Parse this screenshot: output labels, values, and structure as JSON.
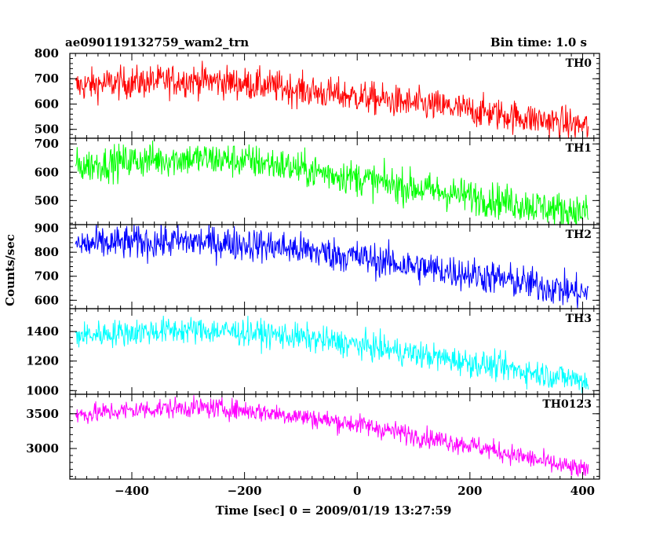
{
  "header": {
    "title": "ae090119132759_wam2_trn",
    "bin_time": "Bin time: 1.0 s"
  },
  "chart_data": {
    "type": "line",
    "xlabel": "Time [sec] 0 = 2009/01/19 13:27:59",
    "ylabel": "Counts/sec",
    "xlim": [
      -510,
      430
    ],
    "xticks": [
      -400,
      -200,
      0,
      200,
      400
    ],
    "grid": false,
    "panels": [
      {
        "name": "TH0",
        "color": "#ff0000",
        "ylim": [
          465,
          800
        ],
        "yticks": [
          500,
          600,
          700,
          800
        ],
        "x": [
          -500,
          -450,
          -400,
          -350,
          -300,
          -250,
          -200,
          -150,
          -100,
          -50,
          0,
          50,
          100,
          150,
          200,
          250,
          300,
          350,
          400,
          410
        ],
        "values": [
          670,
          680,
          685,
          690,
          695,
          690,
          680,
          670,
          655,
          640,
          630,
          615,
          600,
          590,
          575,
          560,
          545,
          530,
          515,
          510
        ]
      },
      {
        "name": "TH1",
        "color": "#00ff00",
        "ylim": [
          415,
          720
        ],
        "yticks": [
          500,
          600,
          700
        ],
        "x": [
          -500,
          -450,
          -400,
          -350,
          -300,
          -250,
          -200,
          -150,
          -100,
          -50,
          0,
          50,
          100,
          150,
          200,
          250,
          300,
          350,
          400,
          410
        ],
        "values": [
          620,
          630,
          640,
          645,
          648,
          645,
          640,
          630,
          610,
          595,
          580,
          560,
          545,
          530,
          515,
          500,
          485,
          470,
          460,
          458
        ]
      },
      {
        "name": "TH2",
        "color": "#0000ff",
        "ylim": [
          565,
          915
        ],
        "yticks": [
          600,
          700,
          800,
          900
        ],
        "x": [
          -500,
          -450,
          -400,
          -350,
          -300,
          -250,
          -200,
          -150,
          -100,
          -50,
          0,
          50,
          100,
          150,
          200,
          250,
          300,
          350,
          400,
          410
        ],
        "values": [
          830,
          835,
          840,
          842,
          845,
          840,
          835,
          825,
          810,
          795,
          780,
          760,
          740,
          725,
          710,
          690,
          670,
          650,
          630,
          625
        ]
      },
      {
        "name": "TH3",
        "color": "#00ffff",
        "ylim": [
          975,
          1555
        ],
        "yticks": [
          1000,
          1200,
          1400
        ],
        "x": [
          -500,
          -450,
          -400,
          -350,
          -300,
          -250,
          -200,
          -150,
          -100,
          -50,
          0,
          50,
          100,
          150,
          200,
          250,
          300,
          350,
          400,
          410
        ],
        "values": [
          1370,
          1385,
          1395,
          1405,
          1410,
          1405,
          1395,
          1380,
          1360,
          1335,
          1310,
          1280,
          1250,
          1220,
          1190,
          1160,
          1130,
          1100,
          1070,
          1060
        ]
      },
      {
        "name": "TH0123",
        "color": "#ff00ff",
        "ylim": [
          2560,
          3780
        ],
        "yticks": [
          3000,
          3500
        ],
        "x": [
          -500,
          -450,
          -400,
          -350,
          -300,
          -250,
          -200,
          -150,
          -100,
          -50,
          0,
          50,
          100,
          150,
          200,
          250,
          300,
          350,
          400,
          410
        ],
        "values": [
          3480,
          3520,
          3550,
          3575,
          3590,
          3580,
          3550,
          3510,
          3460,
          3400,
          3350,
          3270,
          3190,
          3120,
          3050,
          2960,
          2870,
          2770,
          2690,
          2660
        ]
      }
    ]
  }
}
